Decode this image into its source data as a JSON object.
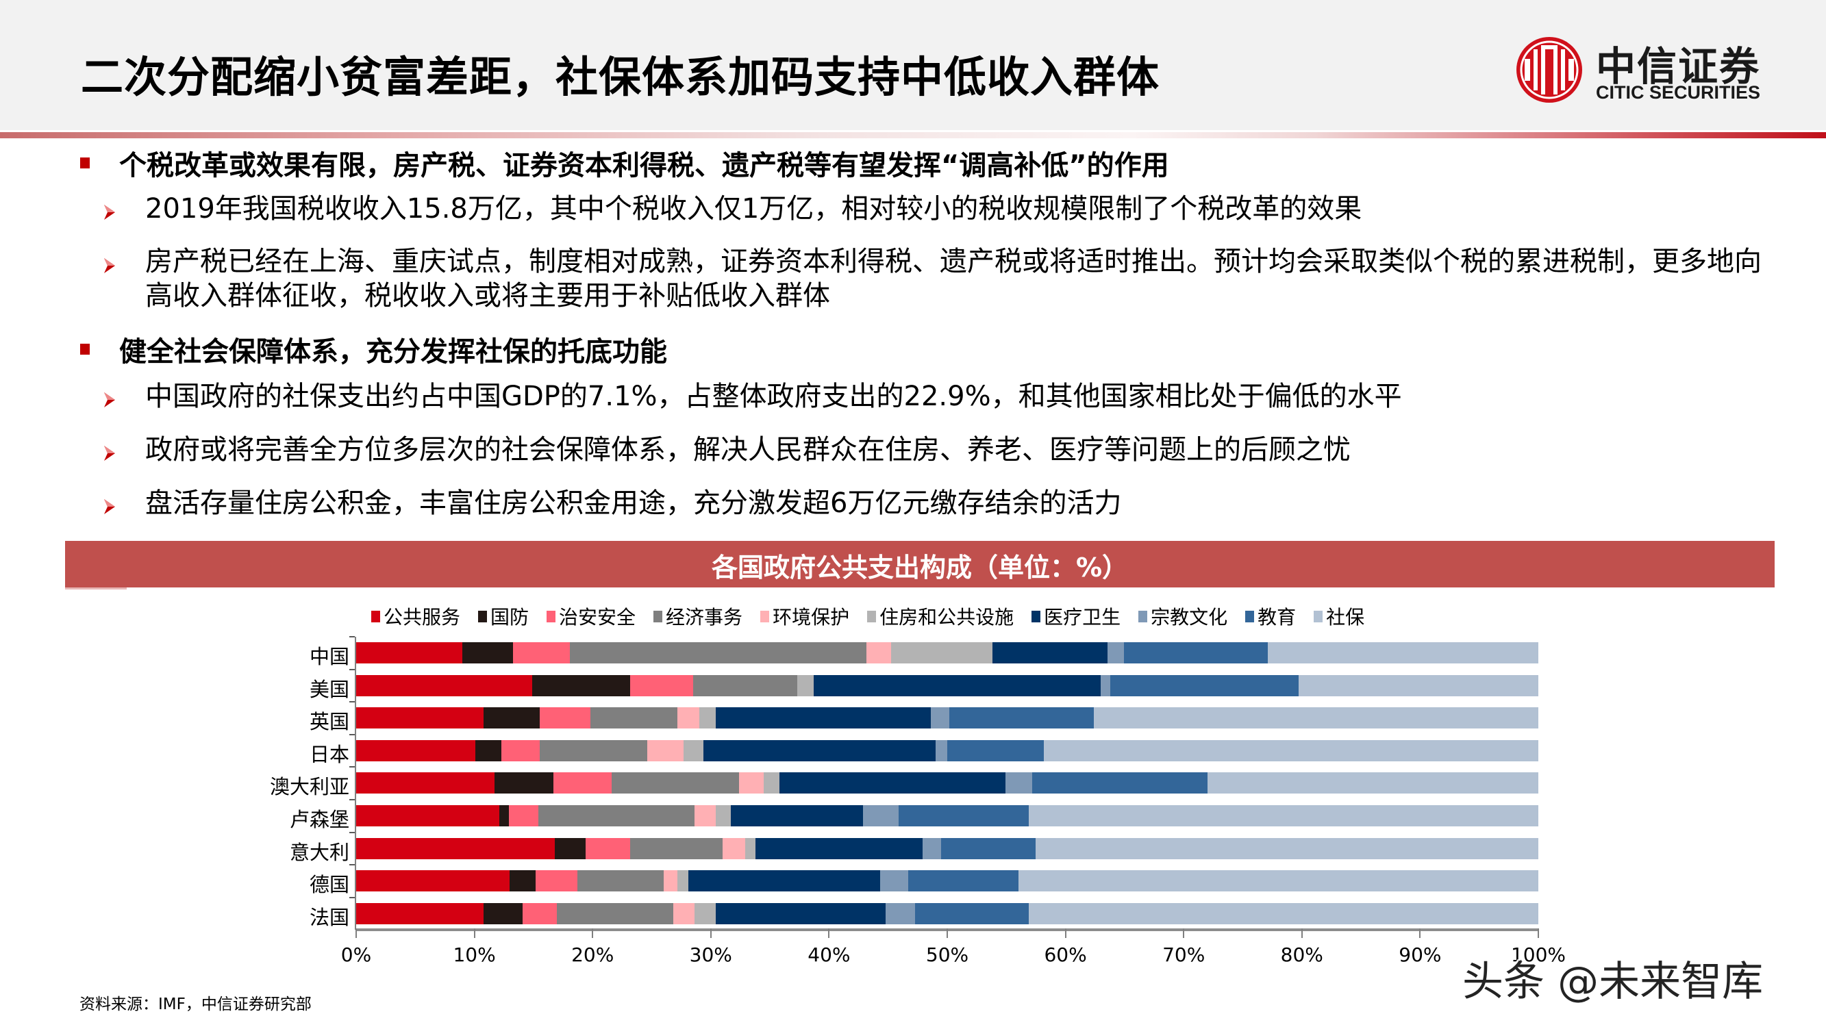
{
  "header": {
    "title": "二次分配缩小贫富差距，社保体系加码支持中低收入群体",
    "logo": {
      "name_cn": "中信证券",
      "name_en": "CITIC SECURITIES",
      "icon": "citic-logo-icon",
      "color": "#d0111b"
    }
  },
  "bullets": [
    {
      "text": "个税改革或效果有限，房产税、证券资本利得税、遗产税等有望发挥“调高补低”的作用",
      "children": [
        "2019年我国税收收入15.8万亿，其中个税收入仅1万亿，相对较小的税收规模限制了个税改革的效果",
        "房产税已经在上海、重庆试点，制度相对成熟，证券资本利得税、遗产税或将适时推出。预计均会采取类似个税的累进税制，更多地向高收入群体征收，税收收入或将主要用于补贴低收入群体"
      ]
    },
    {
      "text": "健全社会保障体系，充分发挥社保的托底功能",
      "children": [
        "中国政府的社保支出约占中国GDP的7.1%，占整体政府支出的22.9%，和其他国家相比处于偏低的水平",
        "政府或将完善全方位多层次的社会保障体系，解决人民群众在住房、养老、医疗等问题上的后顾之忧",
        "盘活存量住房公积金，丰富住房公积金用途，充分激发超6万亿元缴存结余的活力"
      ]
    }
  ],
  "chart_data": {
    "type": "bar",
    "orientation": "horizontal",
    "stacked": "percent",
    "title": "各国政府公共支出构成（单位：%）",
    "xlabel": "",
    "ylabel": "",
    "xlim": [
      0,
      100
    ],
    "x_ticks": [
      "0%",
      "10%",
      "20%",
      "30%",
      "40%",
      "50%",
      "60%",
      "70%",
      "80%",
      "90%",
      "100%"
    ],
    "grid": false,
    "legend_position": "top",
    "categories": [
      "中国",
      "美国",
      "英国",
      "日本",
      "澳大利亚",
      "卢森堡",
      "意大利",
      "德国",
      "法国"
    ],
    "series": [
      {
        "name": "公共服务",
        "color": "#d40012",
        "values": [
          9.0,
          14.9,
          10.8,
          10.1,
          11.7,
          12.1,
          16.8,
          13.0,
          10.8
        ]
      },
      {
        "name": "国防",
        "color": "#231815",
        "values": [
          4.3,
          8.3,
          4.7,
          2.2,
          5.0,
          0.8,
          2.6,
          2.2,
          3.3
        ]
      },
      {
        "name": "治安安全",
        "color": "#ff6176",
        "values": [
          4.8,
          5.3,
          4.3,
          3.2,
          4.9,
          2.5,
          3.8,
          3.5,
          2.9
        ]
      },
      {
        "name": "经济事务",
        "color": "#7f7f7f",
        "values": [
          25.1,
          8.8,
          7.4,
          9.1,
          10.8,
          13.2,
          7.8,
          7.3,
          9.8
        ]
      },
      {
        "name": "环境保护",
        "color": "#ffb0b4",
        "values": [
          2.1,
          0.0,
          1.8,
          3.1,
          2.1,
          1.8,
          1.9,
          1.2,
          1.8
        ]
      },
      {
        "name": "住房和公共设施",
        "color": "#b3b3b3",
        "values": [
          8.6,
          1.4,
          1.4,
          1.7,
          1.3,
          1.3,
          0.9,
          0.9,
          1.8
        ]
      },
      {
        "name": "医疗卫生",
        "color": "#003366",
        "values": [
          9.7,
          24.3,
          18.2,
          19.6,
          19.1,
          11.2,
          14.1,
          16.2,
          14.4
        ]
      },
      {
        "name": "宗教文化",
        "color": "#7f99b6",
        "values": [
          1.4,
          0.8,
          1.6,
          1.0,
          2.3,
          3.0,
          1.6,
          2.4,
          2.5
        ]
      },
      {
        "name": "教育",
        "color": "#336699",
        "values": [
          12.2,
          15.9,
          12.2,
          8.2,
          14.8,
          11.0,
          8.0,
          9.3,
          9.6
        ]
      },
      {
        "name": "社保",
        "color": "#b2c1d3",
        "values": [
          22.9,
          20.3,
          37.6,
          41.8,
          28.0,
          43.1,
          42.5,
          44.0,
          43.1
        ]
      }
    ]
  },
  "chart": {
    "banner_title": "各国政府公共支出构成（单位：%）",
    "banner_color": "#c0504d"
  },
  "footer": {
    "source": "资料来源：IMF，中信证券研究部",
    "watermark": "头条 @未来智库"
  }
}
